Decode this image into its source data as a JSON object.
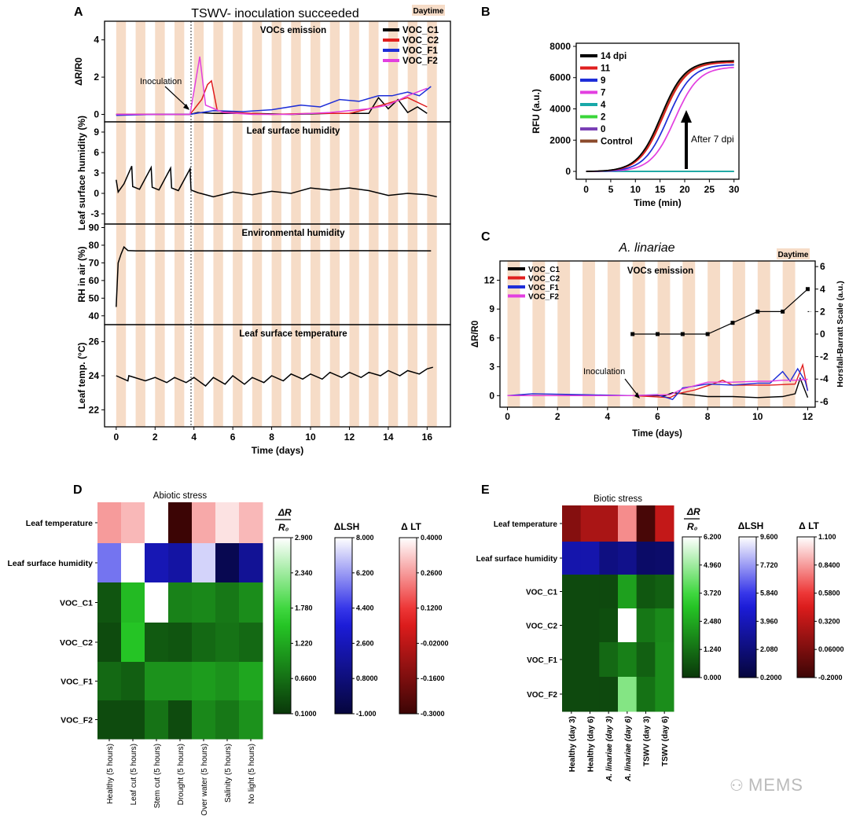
{
  "colors": {
    "day": "#f6dcc7",
    "c1": "#000000",
    "c2": "#e01e1e",
    "f1": "#1e2ed8",
    "f2": "#e23fe0",
    "brown": "#8b4a2b",
    "teal": "#18a8a8",
    "green": "#3ad63a",
    "purple": "#7a3fb5"
  },
  "panels": {
    "a": "A",
    "b": "B",
    "c": "C",
    "d": "D",
    "e": "E"
  },
  "watermark": "MEMS",
  "chart_data": [
    {
      "id": "A",
      "type": "line",
      "title": "TSWV- inoculation succeeded",
      "daytime_label": "Daytime",
      "xlabel": "Time (days)",
      "xlim": [
        -0.6,
        17.2
      ],
      "xticks": [
        "0",
        "2",
        "4",
        "6",
        "8",
        "10",
        "12",
        "14",
        "16"
      ],
      "inoculation_label": "Inoculation",
      "inoculation_day": 3.85,
      "subplots": [
        {
          "title": "VOCs emission",
          "ylabel": "ΔR/R0",
          "ylim": [
            -0.4,
            5
          ],
          "yticks": [
            "0",
            "2",
            "4"
          ],
          "legend": [
            "VOC_C1",
            "VOC_C2",
            "VOC_F1",
            "VOC_F2"
          ],
          "series": [
            {
              "name": "VOC_C1",
              "x": [
                0,
                2,
                3.8,
                4.2,
                5,
                7,
                9,
                11,
                13,
                13.5,
                14,
                14.5,
                15,
                15.5,
                16
              ],
              "y": [
                0,
                0,
                0,
                0.1,
                0.05,
                0.05,
                0,
                0.05,
                0.05,
                0.9,
                0.3,
                0.8,
                0.1,
                0.4,
                0.05
              ]
            },
            {
              "name": "VOC_C2",
              "x": [
                0,
                3.8,
                4.4,
                4.7,
                4.9,
                5.2,
                6,
                8,
                10,
                12,
                13,
                14,
                15,
                16
              ],
              "y": [
                0,
                0,
                0.8,
                1.6,
                1.8,
                0.2,
                0.1,
                0,
                0.05,
                0.05,
                0.3,
                0.6,
                0.9,
                0.4
              ]
            },
            {
              "name": "VOC_F1",
              "x": [
                0,
                2,
                3.8,
                5,
                6.5,
                8,
                9.5,
                10.5,
                11.5,
                12.5,
                13.5,
                14.2,
                15,
                15.6,
                16.2
              ],
              "y": [
                -0.05,
                0,
                0,
                0.2,
                0.15,
                0.25,
                0.5,
                0.4,
                0.8,
                0.7,
                1.0,
                1.0,
                1.2,
                1.0,
                1.5
              ]
            },
            {
              "name": "VOC_F2",
              "x": [
                0,
                2,
                3.8,
                4.3,
                4.6,
                5.5,
                7,
                9,
                11,
                12,
                13,
                14,
                15,
                16
              ],
              "y": [
                0,
                0,
                0,
                3.1,
                0.5,
                0.1,
                0,
                0,
                0.1,
                0.2,
                0.3,
                0.5,
                1.0,
                1.4
              ]
            }
          ]
        },
        {
          "title": "Leaf surface humidity",
          "ylabel": "Leaf surface humidity (%)",
          "ylim": [
            -4.5,
            10.5
          ],
          "yticks": [
            "-3",
            "0",
            "3",
            "6",
            "9"
          ],
          "series": [
            {
              "name": "LSH",
              "x": [
                0,
                0.1,
                0.4,
                0.8,
                0.85,
                1.2,
                1.8,
                1.85,
                2.2,
                2.8,
                2.85,
                3.2,
                3.8,
                3.85,
                4.2,
                5,
                6,
                7,
                8,
                9,
                10,
                11,
                12,
                13,
                14,
                15,
                16,
                16.5
              ],
              "y": [
                2,
                0.2,
                1.4,
                4,
                1.0,
                0.6,
                3.8,
                0.9,
                0.5,
                3.7,
                0.8,
                0.4,
                3.6,
                0.5,
                0.1,
                -0.5,
                0.2,
                -0.2,
                0.3,
                0,
                0.8,
                0.5,
                0.8,
                0.4,
                -0.3,
                0,
                -0.2,
                -0.5
              ]
            }
          ]
        },
        {
          "title": "Environmental humidity",
          "ylabel": "RH in air (%)",
          "ylim": [
            35,
            92
          ],
          "yticks": [
            "40",
            "50",
            "60",
            "70",
            "80",
            "90"
          ],
          "series": [
            {
              "name": "RH",
              "x": [
                0,
                0.1,
                0.25,
                0.4,
                0.6,
                1,
                4,
                8,
                12,
                16.2
              ],
              "y": [
                45,
                70,
                75,
                79,
                77,
                76.8,
                76.8,
                76.8,
                76.9,
                76.8
              ]
            }
          ]
        },
        {
          "title": "Leaf surface temperature",
          "ylabel": "Leaf temp. (°C)",
          "ylim": [
            21,
            27
          ],
          "yticks": [
            "22",
            "24",
            "26"
          ],
          "series": [
            {
              "name": "LT",
              "x": [
                0,
                0.6,
                0.65,
                1.5,
                2,
                2.6,
                3,
                3.6,
                4,
                4.6,
                5,
                5.6,
                6,
                6.6,
                7,
                7.6,
                8,
                8.6,
                9,
                9.6,
                10,
                10.6,
                11,
                11.6,
                12,
                12.6,
                13,
                13.6,
                14,
                14.6,
                15,
                15.6,
                16,
                16.3
              ],
              "y": [
                24,
                23.7,
                24.0,
                23.7,
                23.9,
                23.6,
                23.9,
                23.6,
                23.9,
                23.4,
                23.9,
                23.5,
                24,
                23.5,
                23.9,
                23.6,
                24,
                23.7,
                24.1,
                23.8,
                24.1,
                23.8,
                24.2,
                23.9,
                24.2,
                23.9,
                24.2,
                24,
                24.3,
                24,
                24.3,
                24.1,
                24.4,
                24.5
              ]
            }
          ]
        }
      ]
    },
    {
      "id": "B",
      "type": "line",
      "xlabel": "Time (min)",
      "ylabel": "RFU (a.u.)",
      "xlim": [
        -2,
        31
      ],
      "ylim": [
        -500,
        8200
      ],
      "xticks": [
        "0",
        "5",
        "10",
        "15",
        "20",
        "25",
        "30"
      ],
      "yticks": [
        "0",
        "2000",
        "4000",
        "6000",
        "8000"
      ],
      "legend": [
        "14 dpi",
        "11",
        "9",
        "7",
        "4",
        "2",
        "0",
        "Control"
      ],
      "annotation": "After 7 dpi",
      "series": [
        {
          "name": "14 dpi",
          "midpoint": 15.2,
          "max": 7100
        },
        {
          "name": "11",
          "midpoint": 15.6,
          "max": 7000
        },
        {
          "name": "9",
          "midpoint": 16.6,
          "max": 6850
        },
        {
          "name": "7",
          "midpoint": 18.0,
          "max": 6700
        },
        {
          "name": "4",
          "midpoint": null,
          "max": 0
        },
        {
          "name": "2",
          "midpoint": null,
          "max": 0
        },
        {
          "name": "0",
          "midpoint": null,
          "max": 0
        },
        {
          "name": "Control",
          "midpoint": 15.4,
          "max": 7050
        }
      ]
    },
    {
      "id": "C",
      "type": "line",
      "title": "A. linariae",
      "daytime_label": "Daytime",
      "subtitle": "VOCs emission",
      "xlabel": "Time (days)",
      "ylabel": "ΔR/R0",
      "y2label": "Horsfall-Barratt Scale (a.u.)",
      "xlim": [
        -0.3,
        12.3
      ],
      "ylim": [
        -1.2,
        14
      ],
      "y2lim": [
        -6.5,
        6.5
      ],
      "xticks": [
        "0",
        "2",
        "4",
        "6",
        "8",
        "10",
        "12"
      ],
      "yticks": [
        "0",
        "3",
        "6",
        "9",
        "12"
      ],
      "y2ticks": [
        "-6",
        "-4",
        "-2",
        "0",
        "2",
        "4",
        "6"
      ],
      "legend": [
        "VOC_C1",
        "VOC_C2",
        "VOC_F1",
        "VOC_F2"
      ],
      "inoculation_label": "Inoculation",
      "hb_scale": {
        "x": [
          5,
          6,
          7,
          8,
          9,
          10,
          11,
          12
        ],
        "y": [
          0,
          0,
          0,
          0,
          1,
          2,
          2,
          4
        ]
      },
      "series": [
        {
          "name": "VOC_C1",
          "x": [
            0,
            4,
            6.3,
            6.6,
            7,
            8,
            9,
            10,
            11,
            11.5,
            11.7,
            12
          ],
          "y": [
            0,
            0,
            0,
            0.3,
            0.2,
            -0.1,
            -0.1,
            -0.2,
            -0.1,
            0.2,
            1.8,
            -0.2
          ]
        },
        {
          "name": "VOC_C2",
          "x": [
            0,
            5,
            6.5,
            6.8,
            7.5,
            8.2,
            8.6,
            9,
            9.5,
            10.5,
            11.5,
            11.8,
            12
          ],
          "y": [
            0,
            0,
            -0.2,
            0.2,
            0.6,
            1.2,
            1.6,
            1.1,
            1.1,
            1.1,
            1.2,
            3.2,
            0.5
          ]
        },
        {
          "name": "VOC_F1",
          "x": [
            0,
            1,
            3,
            5,
            6,
            6.6,
            7,
            8,
            9,
            10,
            10.5,
            11,
            11.3,
            11.6,
            11.9,
            12
          ],
          "y": [
            0,
            0.2,
            0.1,
            0,
            0.1,
            -0.4,
            0.8,
            1.2,
            1.1,
            1.3,
            1.3,
            2.5,
            1.5,
            2.8,
            1.5,
            0.5
          ]
        },
        {
          "name": "VOC_F2",
          "x": [
            0,
            5,
            6.5,
            7,
            8,
            9,
            10,
            10.5,
            11,
            11.5,
            12
          ],
          "y": [
            0,
            0,
            0.1,
            0.7,
            1.4,
            1.4,
            1.5,
            1.5,
            1.6,
            1.6,
            1.7
          ]
        }
      ]
    },
    {
      "id": "D",
      "type": "heatmap",
      "title": "Abiotic stress",
      "columns": [
        "Healthy (5 hours)",
        "Leaf cut (5 hours)",
        "Stem cut (5 hours)",
        "Drought (5 hours)",
        "Over water (5 hours)",
        "Salinity (5 hours)",
        "No light (5 hours)"
      ],
      "rows": [
        "Leaf temperature",
        "Leaf surface humidity",
        "VOC_C1",
        "VOC_C2",
        "VOC_F1",
        "VOC_F2"
      ],
      "values": [
        [
          0.26,
          0.3,
          0.4,
          -0.3,
          0.28,
          0.36,
          0.3
        ],
        [
          5.5,
          8.0,
          2.5,
          2.0,
          7.2,
          -0.4,
          1.6
        ],
        [
          0.4,
          1.4,
          2.9,
          0.85,
          0.9,
          0.75,
          0.95
        ],
        [
          0.3,
          1.5,
          0.45,
          0.4,
          0.6,
          0.7,
          0.6
        ],
        [
          0.6,
          0.5,
          1.0,
          1.0,
          1.1,
          1.0,
          1.2
        ],
        [
          0.3,
          0.3,
          0.7,
          0.3,
          0.9,
          0.75,
          1.0
        ]
      ],
      "colorbars": [
        {
          "label": "ΔR/R0",
          "ticks": [
            "2.900",
            "2.340",
            "1.780",
            "1.220",
            "0.6600",
            "0.1000"
          ]
        },
        {
          "label": "ΔLSH",
          "ticks": [
            "8.000",
            "6.200",
            "4.400",
            "2.600",
            "0.8000",
            "-1.000"
          ]
        },
        {
          "label": "Δ LT",
          "ticks": [
            "0.4000",
            "0.2600",
            "0.1200",
            "-0.02000",
            "-0.1600",
            "-0.3000"
          ]
        }
      ]
    },
    {
      "id": "E",
      "type": "heatmap",
      "title": "Biotic stress",
      "columns": [
        "Healthy (day 3)",
        "Healthy (day 6)",
        "A. linariae (day 3)",
        "A. linariae (day 6)",
        "TSWV (day 3)",
        "TSWV (day 6)"
      ],
      "rows": [
        "Leaf temperature",
        "Leaf surface humidity",
        "VOC_C1",
        "VOC_C2",
        "VOC_F1",
        "VOC_F2"
      ],
      "values": [
        [
          0.1,
          0.25,
          0.25,
          0.8,
          -0.15,
          0.35
        ],
        [
          3.6,
          3.6,
          2.3,
          2.6,
          1.5,
          1.6
        ],
        [
          0.4,
          0.4,
          0.4,
          2.3,
          0.7,
          0.9
        ],
        [
          0.4,
          0.4,
          0.5,
          6.2,
          1.4,
          1.8
        ],
        [
          0.4,
          0.4,
          1.1,
          1.6,
          0.9,
          1.9
        ],
        [
          0.4,
          0.4,
          0.4,
          4.6,
          1.3,
          1.9
        ]
      ],
      "colorbars": [
        {
          "label": "ΔR/R0",
          "ticks": [
            "6.200",
            "4.960",
            "3.720",
            "2.480",
            "1.240",
            "0.000"
          ]
        },
        {
          "label": "ΔLSH",
          "ticks": [
            "9.600",
            "7.720",
            "5.840",
            "3.960",
            "2.080",
            "0.2000"
          ]
        },
        {
          "label": "Δ LT",
          "ticks": [
            "1.100",
            "0.8400",
            "0.5800",
            "0.3200",
            "0.06000",
            "-0.2000"
          ]
        }
      ]
    }
  ]
}
